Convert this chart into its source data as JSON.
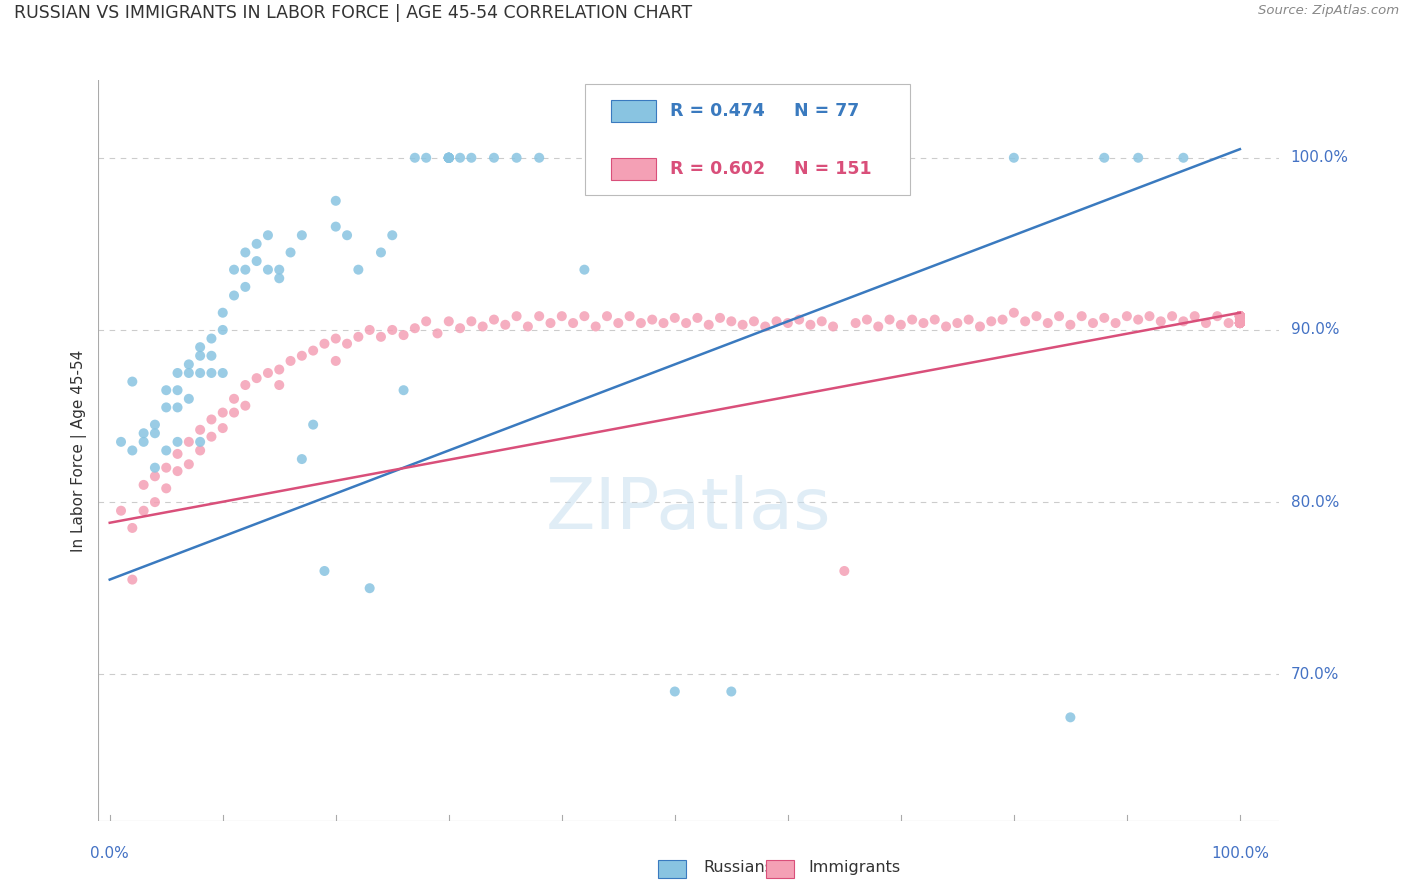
{
  "title": "RUSSIAN VS IMMIGRANTS IN LABOR FORCE | AGE 45-54 CORRELATION CHART",
  "source": "Source: ZipAtlas.com",
  "ylabel": "In Labor Force | Age 45-54",
  "watermark": "ZIPatlas",
  "legend_r_blue": "R = 0.474",
  "legend_n_blue": "N = 77",
  "legend_r_pink": "R = 0.602",
  "legend_n_pink": "N = 151",
  "color_blue": "#89c4e1",
  "color_pink": "#f4a0b5",
  "color_blue_line": "#3a7abf",
  "color_pink_line": "#d94f7a",
  "color_axis_labels": "#4472C4",
  "grid_color": "#cccccc",
  "blue_x": [
    0.01,
    0.02,
    0.02,
    0.03,
    0.03,
    0.04,
    0.04,
    0.04,
    0.05,
    0.05,
    0.05,
    0.06,
    0.06,
    0.06,
    0.06,
    0.07,
    0.07,
    0.07,
    0.08,
    0.08,
    0.08,
    0.08,
    0.09,
    0.09,
    0.09,
    0.1,
    0.1,
    0.1,
    0.11,
    0.11,
    0.12,
    0.12,
    0.12,
    0.13,
    0.13,
    0.14,
    0.14,
    0.15,
    0.15,
    0.16,
    0.17,
    0.17,
    0.18,
    0.19,
    0.2,
    0.2,
    0.21,
    0.22,
    0.23,
    0.24,
    0.25,
    0.26,
    0.27,
    0.28,
    0.3,
    0.3,
    0.3,
    0.3,
    0.3,
    0.3,
    0.3,
    0.3,
    0.3,
    0.31,
    0.32,
    0.34,
    0.36,
    0.38,
    0.42,
    0.5,
    0.55,
    0.65,
    0.8,
    0.85,
    0.88,
    0.91,
    0.95
  ],
  "blue_y": [
    0.835,
    0.83,
    0.87,
    0.835,
    0.84,
    0.845,
    0.84,
    0.82,
    0.865,
    0.855,
    0.83,
    0.875,
    0.865,
    0.855,
    0.835,
    0.88,
    0.875,
    0.86,
    0.89,
    0.885,
    0.875,
    0.835,
    0.895,
    0.885,
    0.875,
    0.91,
    0.9,
    0.875,
    0.935,
    0.92,
    0.945,
    0.935,
    0.925,
    0.95,
    0.94,
    0.955,
    0.935,
    0.935,
    0.93,
    0.945,
    0.955,
    0.825,
    0.845,
    0.76,
    0.975,
    0.96,
    0.955,
    0.935,
    0.75,
    0.945,
    0.955,
    0.865,
    1.0,
    1.0,
    1.0,
    1.0,
    1.0,
    1.0,
    1.0,
    1.0,
    1.0,
    1.0,
    1.0,
    1.0,
    1.0,
    1.0,
    1.0,
    1.0,
    0.935,
    0.69,
    0.69,
    1.0,
    1.0,
    0.675,
    1.0,
    1.0,
    1.0
  ],
  "pink_x": [
    0.01,
    0.02,
    0.02,
    0.03,
    0.03,
    0.04,
    0.04,
    0.05,
    0.05,
    0.06,
    0.06,
    0.07,
    0.07,
    0.08,
    0.08,
    0.09,
    0.09,
    0.1,
    0.1,
    0.11,
    0.11,
    0.12,
    0.12,
    0.13,
    0.14,
    0.15,
    0.15,
    0.16,
    0.17,
    0.18,
    0.19,
    0.2,
    0.2,
    0.21,
    0.22,
    0.23,
    0.24,
    0.25,
    0.26,
    0.27,
    0.28,
    0.29,
    0.3,
    0.31,
    0.32,
    0.33,
    0.34,
    0.35,
    0.36,
    0.37,
    0.38,
    0.39,
    0.4,
    0.41,
    0.42,
    0.43,
    0.44,
    0.45,
    0.46,
    0.47,
    0.48,
    0.49,
    0.5,
    0.51,
    0.52,
    0.53,
    0.54,
    0.55,
    0.56,
    0.57,
    0.58,
    0.59,
    0.6,
    0.61,
    0.62,
    0.63,
    0.64,
    0.65,
    0.66,
    0.67,
    0.68,
    0.69,
    0.7,
    0.71,
    0.72,
    0.73,
    0.74,
    0.75,
    0.76,
    0.77,
    0.78,
    0.79,
    0.8,
    0.81,
    0.82,
    0.83,
    0.84,
    0.85,
    0.86,
    0.87,
    0.88,
    0.89,
    0.9,
    0.91,
    0.92,
    0.93,
    0.94,
    0.95,
    0.96,
    0.97,
    0.98,
    0.99,
    1.0,
    1.0,
    1.0,
    1.0,
    1.0,
    1.0,
    1.0,
    1.0,
    1.0,
    1.0,
    1.0,
    1.0,
    1.0,
    1.0,
    1.0,
    1.0,
    1.0,
    1.0,
    1.0,
    1.0,
    1.0,
    1.0,
    1.0,
    1.0,
    1.0,
    1.0,
    1.0,
    1.0,
    1.0,
    1.0,
    1.0,
    1.0,
    1.0,
    1.0,
    1.0,
    1.0,
    1.0,
    1.0,
    1.0,
    1.0
  ],
  "pink_y": [
    0.795,
    0.785,
    0.755,
    0.81,
    0.795,
    0.815,
    0.8,
    0.82,
    0.808,
    0.828,
    0.818,
    0.835,
    0.822,
    0.842,
    0.83,
    0.848,
    0.838,
    0.852,
    0.843,
    0.86,
    0.852,
    0.868,
    0.856,
    0.872,
    0.875,
    0.877,
    0.868,
    0.882,
    0.885,
    0.888,
    0.892,
    0.895,
    0.882,
    0.892,
    0.896,
    0.9,
    0.896,
    0.9,
    0.897,
    0.901,
    0.905,
    0.898,
    0.905,
    0.901,
    0.905,
    0.902,
    0.906,
    0.903,
    0.908,
    0.902,
    0.908,
    0.904,
    0.908,
    0.904,
    0.908,
    0.902,
    0.908,
    0.904,
    0.908,
    0.904,
    0.906,
    0.904,
    0.907,
    0.904,
    0.907,
    0.903,
    0.907,
    0.905,
    0.903,
    0.905,
    0.902,
    0.905,
    0.904,
    0.906,
    0.903,
    0.905,
    0.902,
    0.76,
    0.904,
    0.906,
    0.902,
    0.906,
    0.903,
    0.906,
    0.904,
    0.906,
    0.902,
    0.904,
    0.906,
    0.902,
    0.905,
    0.906,
    0.91,
    0.905,
    0.908,
    0.904,
    0.908,
    0.903,
    0.908,
    0.904,
    0.907,
    0.904,
    0.908,
    0.906,
    0.908,
    0.905,
    0.908,
    0.905,
    0.908,
    0.904,
    0.908,
    0.904,
    0.906,
    0.908,
    0.904,
    0.908,
    0.904,
    0.908,
    0.904,
    0.908,
    0.904,
    0.908,
    0.904,
    0.908,
    0.904,
    0.908,
    0.904,
    0.908,
    0.904,
    0.908,
    0.904,
    0.908,
    0.904,
    0.908,
    0.906,
    0.908,
    0.904,
    0.908,
    0.904,
    0.908,
    0.904,
    0.908,
    0.904,
    0.908,
    0.904,
    0.908,
    0.904,
    0.908,
    0.904,
    0.908,
    0.904,
    0.908
  ],
  "blue_line_x": [
    0.0,
    1.0
  ],
  "blue_line_y": [
    0.755,
    1.005
  ],
  "pink_line_x": [
    0.0,
    1.0
  ],
  "pink_line_y": [
    0.788,
    0.91
  ],
  "xlim": [
    -0.01,
    1.035
  ],
  "ylim": [
    0.615,
    1.045
  ],
  "yticks": [
    0.7,
    0.8,
    0.9,
    1.0
  ],
  "ytick_labels": [
    "70.0%",
    "80.0%",
    "90.0%",
    "100.0%"
  ]
}
